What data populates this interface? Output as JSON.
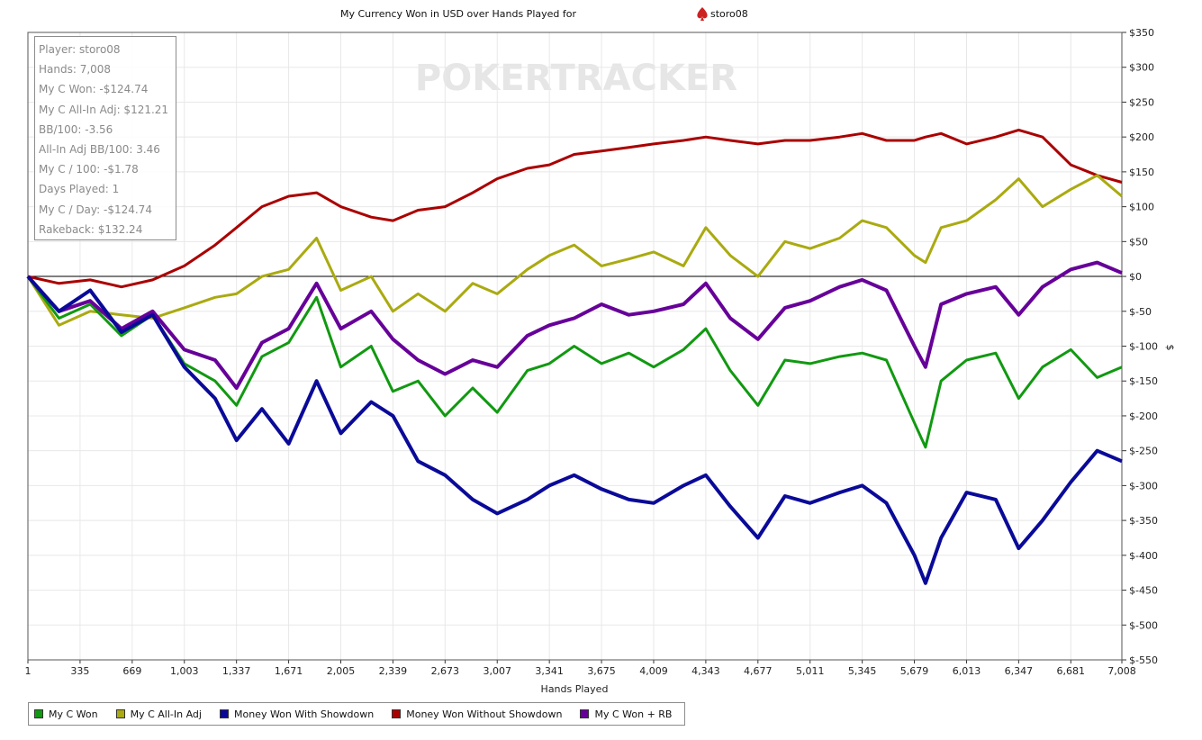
{
  "chart_data": {
    "type": "line",
    "title": "My Currency Won in USD over Hands Played for",
    "player_name": "storo08",
    "xlabel": "Hands Played",
    "ylabel": "$",
    "xlim": [
      1,
      7008
    ],
    "ylim": [
      -550,
      350
    ],
    "x_ticks": [
      1,
      335,
      669,
      1003,
      1337,
      1671,
      2005,
      2339,
      2673,
      3007,
      3341,
      3675,
      4009,
      4343,
      4677,
      5011,
      5345,
      5679,
      6013,
      6347,
      6681,
      7008
    ],
    "x_tick_labels": [
      "1",
      "335",
      "669",
      "1,003",
      "1,337",
      "1,671",
      "2,005",
      "2,339",
      "2,673",
      "3,007",
      "3,341",
      "3,675",
      "4,009",
      "4,343",
      "4,677",
      "5,011",
      "5,345",
      "5,679",
      "6,013",
      "6,347",
      "6,681",
      "7,008"
    ],
    "y_ticks": [
      350,
      300,
      250,
      200,
      150,
      100,
      50,
      0,
      -50,
      -100,
      -150,
      -200,
      -250,
      -300,
      -350,
      -400,
      -450,
      -500,
      -550
    ],
    "y_tick_labels": [
      "$350",
      "$300",
      "$250",
      "$200",
      "$150",
      "$100",
      "$50",
      "$0",
      "$-50",
      "$-100",
      "$-150",
      "$-200",
      "$-250",
      "$-300",
      "$-350",
      "$-400",
      "$-450",
      "$-500",
      "$-550"
    ],
    "grid": true,
    "legend_position": "bottom",
    "x": [
      1,
      200,
      400,
      600,
      800,
      1003,
      1200,
      1337,
      1500,
      1671,
      1850,
      2005,
      2200,
      2339,
      2500,
      2673,
      2850,
      3007,
      3200,
      3341,
      3500,
      3675,
      3850,
      4009,
      4200,
      4343,
      4500,
      4677,
      4850,
      5011,
      5200,
      5345,
      5500,
      5679,
      5750,
      5850,
      6013,
      6200,
      6347,
      6500,
      6681,
      6850,
      7008
    ],
    "series": [
      {
        "name": "My C Won",
        "color": "#119911",
        "values": [
          0,
          -60,
          -40,
          -85,
          -55,
          -125,
          -150,
          -185,
          -115,
          -95,
          -30,
          -130,
          -100,
          -165,
          -150,
          -200,
          -160,
          -195,
          -135,
          -125,
          -100,
          -125,
          -110,
          -130,
          -105,
          -75,
          -135,
          -185,
          -120,
          -125,
          -115,
          -110,
          -120,
          -210,
          -245,
          -150,
          -120,
          -110,
          -175,
          -130,
          -105,
          -145,
          -130
        ]
      },
      {
        "name": "My C All-In Adj",
        "color": "#aaaa11",
        "values": [
          0,
          -70,
          -50,
          -55,
          -60,
          -45,
          -30,
          -25,
          0,
          10,
          55,
          -20,
          0,
          -50,
          -25,
          -50,
          -10,
          -25,
          10,
          30,
          45,
          15,
          25,
          35,
          15,
          70,
          30,
          0,
          50,
          40,
          55,
          80,
          70,
          30,
          20,
          70,
          80,
          110,
          140,
          100,
          125,
          145,
          115
        ]
      },
      {
        "name": "Money Won With Showdown",
        "color": "#0a0a99",
        "values": [
          0,
          -50,
          -20,
          -80,
          -55,
          -130,
          -175,
          -235,
          -190,
          -240,
          -150,
          -225,
          -180,
          -200,
          -265,
          -285,
          -320,
          -340,
          -320,
          -300,
          -285,
          -305,
          -320,
          -325,
          -300,
          -285,
          -330,
          -375,
          -315,
          -325,
          -310,
          -300,
          -325,
          -400,
          -440,
          -375,
          -310,
          -320,
          -390,
          -350,
          -295,
          -250,
          -265
        ]
      },
      {
        "name": "Money Won Without Showdown",
        "color": "#aa0000",
        "values": [
          0,
          -10,
          -5,
          -15,
          -5,
          15,
          45,
          70,
          100,
          115,
          120,
          100,
          85,
          80,
          95,
          100,
          120,
          140,
          155,
          160,
          175,
          180,
          185,
          190,
          195,
          200,
          195,
          190,
          195,
          195,
          200,
          205,
          195,
          195,
          200,
          205,
          190,
          200,
          210,
          200,
          160,
          145,
          135
        ]
      },
      {
        "name": "My C Won + RB",
        "color": "#660099",
        "values": [
          0,
          -50,
          -35,
          -75,
          -50,
          -105,
          -120,
          -160,
          -95,
          -75,
          -10,
          -75,
          -50,
          -90,
          -120,
          -140,
          -120,
          -130,
          -85,
          -70,
          -60,
          -40,
          -55,
          -50,
          -40,
          -10,
          -60,
          -90,
          -45,
          -35,
          -15,
          -5,
          -20,
          -100,
          -130,
          -40,
          -25,
          -15,
          -55,
          -15,
          10,
          20,
          5
        ]
      }
    ]
  },
  "stats": {
    "player": "Player: storo08",
    "hands": "Hands: 7,008",
    "won": "My C Won: -$124.74",
    "allin": "My C All-In Adj: $121.21",
    "bb100": "BB/100: -3.56",
    "allin_bb100": "All-In Adj BB/100: 3.46",
    "c100": "My C / 100: -$1.78",
    "days": "Days Played: 1",
    "cday": "My C / Day: -$124.74",
    "rakeback": "Rakeback: $132.24"
  },
  "watermark": "POKERTRACKER"
}
